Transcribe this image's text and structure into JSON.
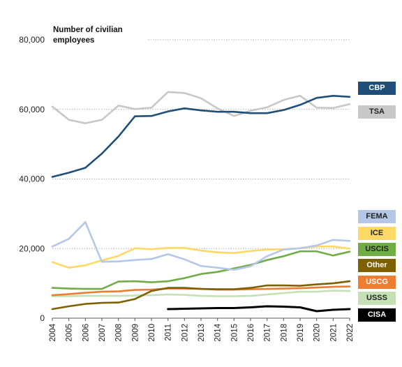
{
  "chart_data": {
    "type": "line",
    "ylabel": "Number of civilian employees",
    "ylim": [
      0,
      80000
    ],
    "yticks": [
      0,
      20000,
      40000,
      60000,
      80000
    ],
    "ytick_labels": [
      "0",
      "20,000",
      "40,000",
      "60,000",
      "80,000"
    ],
    "x": [
      "2004",
      "2005",
      "2006",
      "2007",
      "2008",
      "2009",
      "2010",
      "2011",
      "2012",
      "2013",
      "2014",
      "2015",
      "2016",
      "2017",
      "2018",
      "2019",
      "2020",
      "2021",
      "2022"
    ],
    "grid": "horizontal dotted",
    "legend_placement": "right",
    "series": [
      {
        "name": "CBP",
        "color": "#1f4e79",
        "label_color": "#ffffff",
        "values": [
          40600,
          41800,
          43200,
          47300,
          52200,
          58000,
          58100,
          59400,
          60300,
          59700,
          59300,
          59300,
          58900,
          58900,
          59800,
          61300,
          63300,
          63900,
          63600
        ]
      },
      {
        "name": "TSA",
        "color": "#c8c8c8",
        "label_color": "#222222",
        "values": [
          60800,
          57000,
          56000,
          57000,
          61100,
          60100,
          60500,
          65000,
          64700,
          63200,
          60300,
          58100,
          59600,
          60600,
          62700,
          63900,
          60500,
          60400,
          61500
        ]
      },
      {
        "name": "FEMA",
        "color": "#b4c7e7",
        "label_color": "#222222",
        "values": [
          20600,
          22800,
          27600,
          16200,
          16300,
          16700,
          17000,
          18400,
          16900,
          15000,
          14500,
          13900,
          14900,
          17800,
          19700,
          20100,
          20900,
          22500,
          22200
        ]
      },
      {
        "name": "ICE",
        "color": "#ffd966",
        "label_color": "#222222",
        "values": [
          16100,
          14500,
          15200,
          16600,
          17900,
          20100,
          19800,
          20200,
          20200,
          19400,
          18900,
          18700,
          19300,
          19700,
          19800,
          20100,
          20600,
          20600,
          20000
        ]
      },
      {
        "name": "USCIS",
        "color": "#70ad47",
        "label_color": "#222222",
        "values": [
          8700,
          8500,
          8400,
          8400,
          10500,
          10600,
          10300,
          10600,
          11500,
          12700,
          13300,
          14300,
          15300,
          16700,
          17800,
          19200,
          19200,
          18000,
          19100
        ]
      },
      {
        "name": "Other",
        "color": "#7f6000",
        "label_color": "#ffffff",
        "values": [
          2600,
          3400,
          4100,
          4400,
          4500,
          5500,
          7800,
          8700,
          8700,
          8400,
          8300,
          8300,
          8700,
          9400,
          9400,
          9300,
          9700,
          10000,
          10600
        ]
      },
      {
        "name": "USCG",
        "color": "#ed7d31",
        "label_color": "#ffffff",
        "values": [
          6600,
          6900,
          7300,
          7600,
          7700,
          8100,
          8200,
          8500,
          8500,
          8400,
          8200,
          8200,
          8300,
          8400,
          8500,
          8600,
          8800,
          9000,
          9100
        ]
      },
      {
        "name": "USSS",
        "color": "#c5e0b4",
        "label_color": "#222222",
        "values": [
          6300,
          6300,
          6400,
          6400,
          6400,
          6500,
          6600,
          6800,
          6700,
          6400,
          6300,
          6300,
          6400,
          6800,
          7200,
          7600,
          7600,
          7900,
          7800
        ]
      },
      {
        "name": "CISA",
        "color": "#000000",
        "label_color": "#ffffff",
        "values": [
          null,
          null,
          null,
          null,
          null,
          null,
          null,
          2600,
          2700,
          2800,
          2900,
          2900,
          3100,
          3400,
          3300,
          3100,
          2000,
          2400,
          2600
        ]
      }
    ]
  }
}
